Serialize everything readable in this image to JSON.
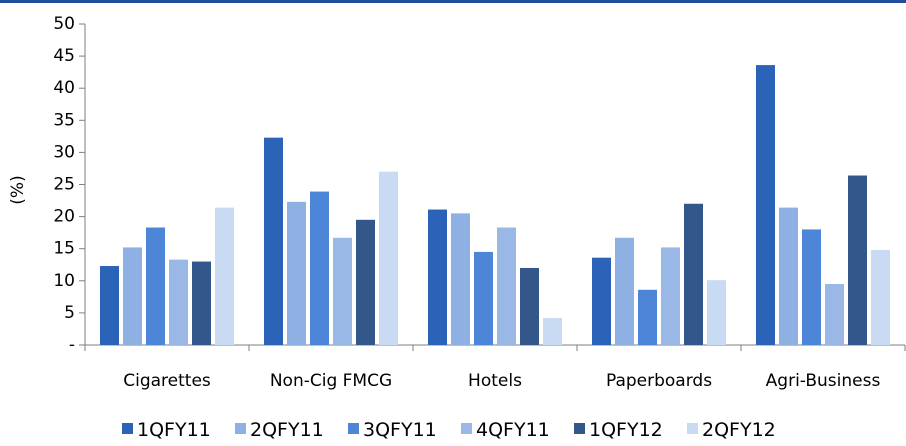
{
  "chart_data": {
    "type": "bar",
    "ylabel": "(%)",
    "ylim": [
      0,
      50
    ],
    "yticks": [
      0,
      5,
      10,
      15,
      20,
      25,
      30,
      35,
      40,
      45,
      50
    ],
    "ytick_labels": [
      "-",
      "5",
      "10",
      "15",
      "20",
      "25",
      "30",
      "35",
      "40",
      "45",
      "50"
    ],
    "categories": [
      "Cigarettes",
      "Non-Cig FMCG",
      "Hotels",
      "Paperboards",
      "Agri-Business"
    ],
    "series": [
      {
        "name": "1QFY11",
        "color": "#2b63b8",
        "values": [
          12.3,
          32.3,
          21.1,
          13.6,
          43.6
        ]
      },
      {
        "name": "2QFY11",
        "color": "#8fb0e3",
        "values": [
          15.2,
          22.3,
          20.5,
          16.7,
          21.4
        ]
      },
      {
        "name": "3QFY11",
        "color": "#4d86d8",
        "values": [
          18.3,
          23.9,
          14.5,
          8.6,
          18.0
        ]
      },
      {
        "name": "4QFY11",
        "color": "#9ab8e6",
        "values": [
          13.3,
          16.7,
          18.3,
          15.2,
          9.5
        ]
      },
      {
        "name": "1QFY12",
        "color": "#33578a",
        "values": [
          13.0,
          19.5,
          12.0,
          22.0,
          26.4
        ]
      },
      {
        "name": "2QFY12",
        "color": "#c9dbf2",
        "values": [
          21.4,
          27.0,
          4.2,
          10.1,
          14.8
        ]
      }
    ],
    "grid": false,
    "legend_position": "bottom"
  },
  "theme": {
    "top_rule_color": "#1f4e9a",
    "axis_color": "#7f7f7f"
  }
}
